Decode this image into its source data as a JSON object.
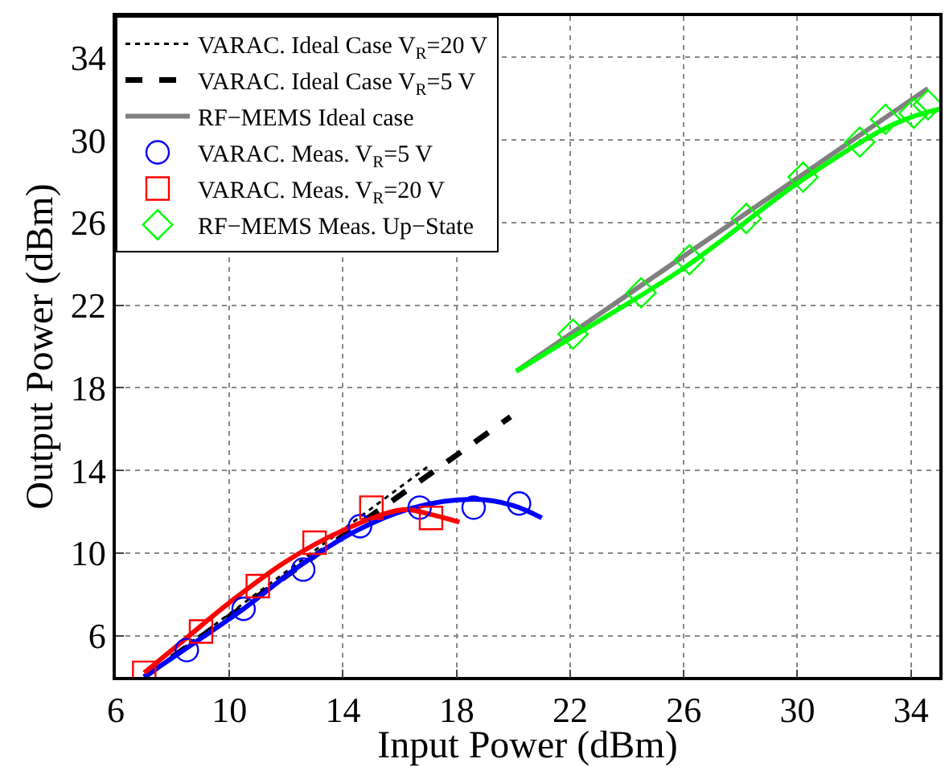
{
  "chart_data": {
    "type": "line",
    "xlabel": "Input Power (dBm)",
    "ylabel": "Output Power (dBm)",
    "xlim": [
      6,
      35
    ],
    "xticks": [
      6,
      10,
      14,
      18,
      22,
      26,
      30,
      34
    ],
    "ylim": [
      4,
      36
    ],
    "yticks": [
      6,
      10,
      14,
      18,
      22,
      26,
      30,
      34
    ],
    "grid": true,
    "legend": "top left",
    "series": [
      {
        "name": "VARAC. Ideal Case V$_{R}$=20 V",
        "line_style": "dotted",
        "marker": "none",
        "color": "#000000",
        "x": [
          7,
          17.1
        ],
        "values": [
          4.0,
          14.3
        ]
      },
      {
        "name": "VARAC. Ideal Case V$_{R}$=5 V",
        "line_style": "dashed",
        "marker": "none",
        "color": "#000000",
        "x": [
          7,
          19.9
        ],
        "values": [
          4.0,
          16.6
        ]
      },
      {
        "name": "RF−MEMS Ideal case",
        "line_style": "solid",
        "marker": "none",
        "color": "#808080",
        "x": [
          20.1,
          34.6
        ],
        "values": [
          18.8,
          32.5
        ]
      },
      {
        "name": "VARAC. Meas. V$_{R}$=5 V",
        "type": "scatter",
        "marker": "circle",
        "color": "#0000ff",
        "x": [
          8.5,
          10.5,
          12.6,
          14.6,
          16.7,
          18.6,
          20.2
        ],
        "values": [
          5.3,
          7.3,
          9.2,
          11.3,
          12.2,
          12.2,
          12.4
        ]
      },
      {
        "name": "VARAC. Meas. V$_{R}$=20 V",
        "type": "scatter",
        "marker": "square",
        "color": "#ff0000",
        "x": [
          7.0,
          9.0,
          11.0,
          13.0,
          15.0,
          17.1
        ],
        "values": [
          4.2,
          6.2,
          8.4,
          10.5,
          12.2,
          11.7
        ]
      },
      {
        "name": "RF−MEMS Meas. Up−State",
        "type": "scatter",
        "marker": "diamond",
        "color": "#00ff00",
        "x": [
          22.1,
          24.5,
          26.2,
          28.2,
          30.2,
          32.2,
          33.1,
          34.1,
          34.6
        ],
        "values": [
          20.6,
          22.6,
          24.2,
          26.2,
          28.2,
          29.9,
          31.0,
          31.3,
          31.7
        ]
      },
      {
        "line_style": "solid",
        "marker": "none",
        "color": "#0000ff",
        "x": [
          7.0,
          8.5,
          10.5,
          12.5,
          14.5,
          16.5,
          18.6,
          20.0,
          21.0
        ],
        "values": [
          4.0,
          5.4,
          7.3,
          9.4,
          11.1,
          12.2,
          12.6,
          12.3,
          11.7
        ]
      },
      {
        "line_style": "solid",
        "marker": "none",
        "color": "#ff0000",
        "x": [
          7.0,
          8.5,
          10.0,
          12.0,
          14.0,
          16.1,
          17.0,
          18.1
        ],
        "values": [
          4.2,
          5.9,
          7.6,
          9.6,
          11.1,
          12.1,
          11.9,
          11.5
        ]
      },
      {
        "line_style": "solid",
        "marker": "none",
        "color": "#00ff00",
        "x": [
          20.1,
          22.0,
          26.0,
          30.0,
          33.0,
          34.0,
          35.0
        ],
        "values": [
          18.8,
          20.4,
          23.8,
          27.9,
          30.5,
          31.1,
          31.5
        ]
      }
    ]
  }
}
